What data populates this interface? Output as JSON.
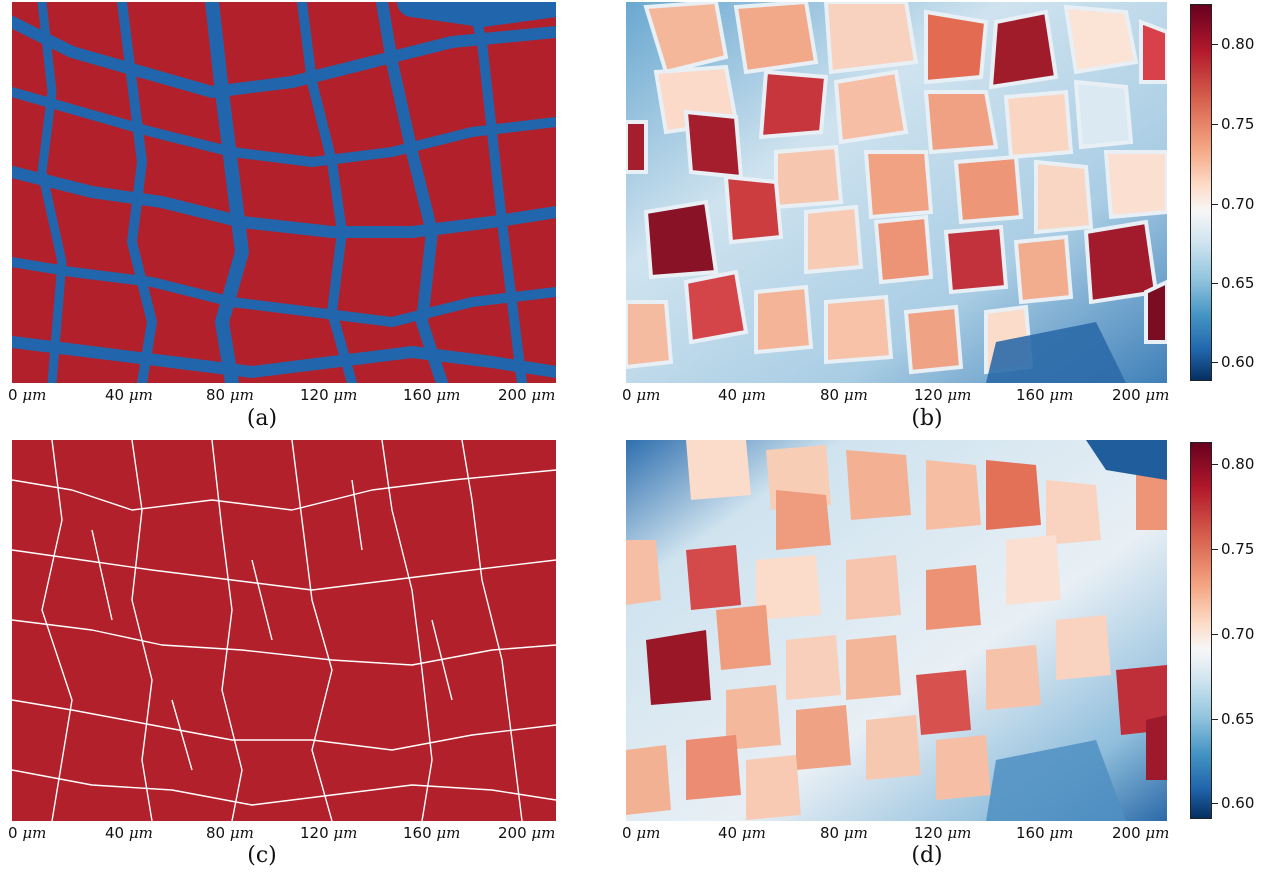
{
  "figure": {
    "panels": [
      {
        "id": "a",
        "caption": "(a)",
        "kind": "binary-mask",
        "colors": {
          "fiber": "#b2202b",
          "background": "#2166ac"
        }
      },
      {
        "id": "b",
        "caption": "(b)",
        "kind": "heatmap",
        "colors": {
          "low": "#053061",
          "mid": "#f7f7f7",
          "high": "#67001f"
        }
      },
      {
        "id": "c",
        "caption": "(c)",
        "kind": "boundary-mask",
        "colors": {
          "fiber": "#b2202b",
          "boundary": "#ffffff"
        }
      },
      {
        "id": "d",
        "caption": "(d)",
        "kind": "heatmap",
        "colors": {
          "low": "#053061",
          "mid": "#f7f7f7",
          "high": "#67001f"
        }
      }
    ],
    "x_axis": {
      "tick_values": [
        "0",
        "40",
        "80",
        "120",
        "160",
        "200"
      ],
      "unit": "μm"
    },
    "colorbar_top": {
      "ticks": [
        "0.80",
        "0.75",
        "0.70",
        "0.65",
        "0.60"
      ],
      "range": [
        0.59,
        0.825
      ]
    },
    "colorbar_bottom": {
      "ticks": [
        "0.80",
        "0.75",
        "0.70",
        "0.65",
        "0.60"
      ],
      "range": [
        0.59,
        0.81
      ]
    }
  }
}
